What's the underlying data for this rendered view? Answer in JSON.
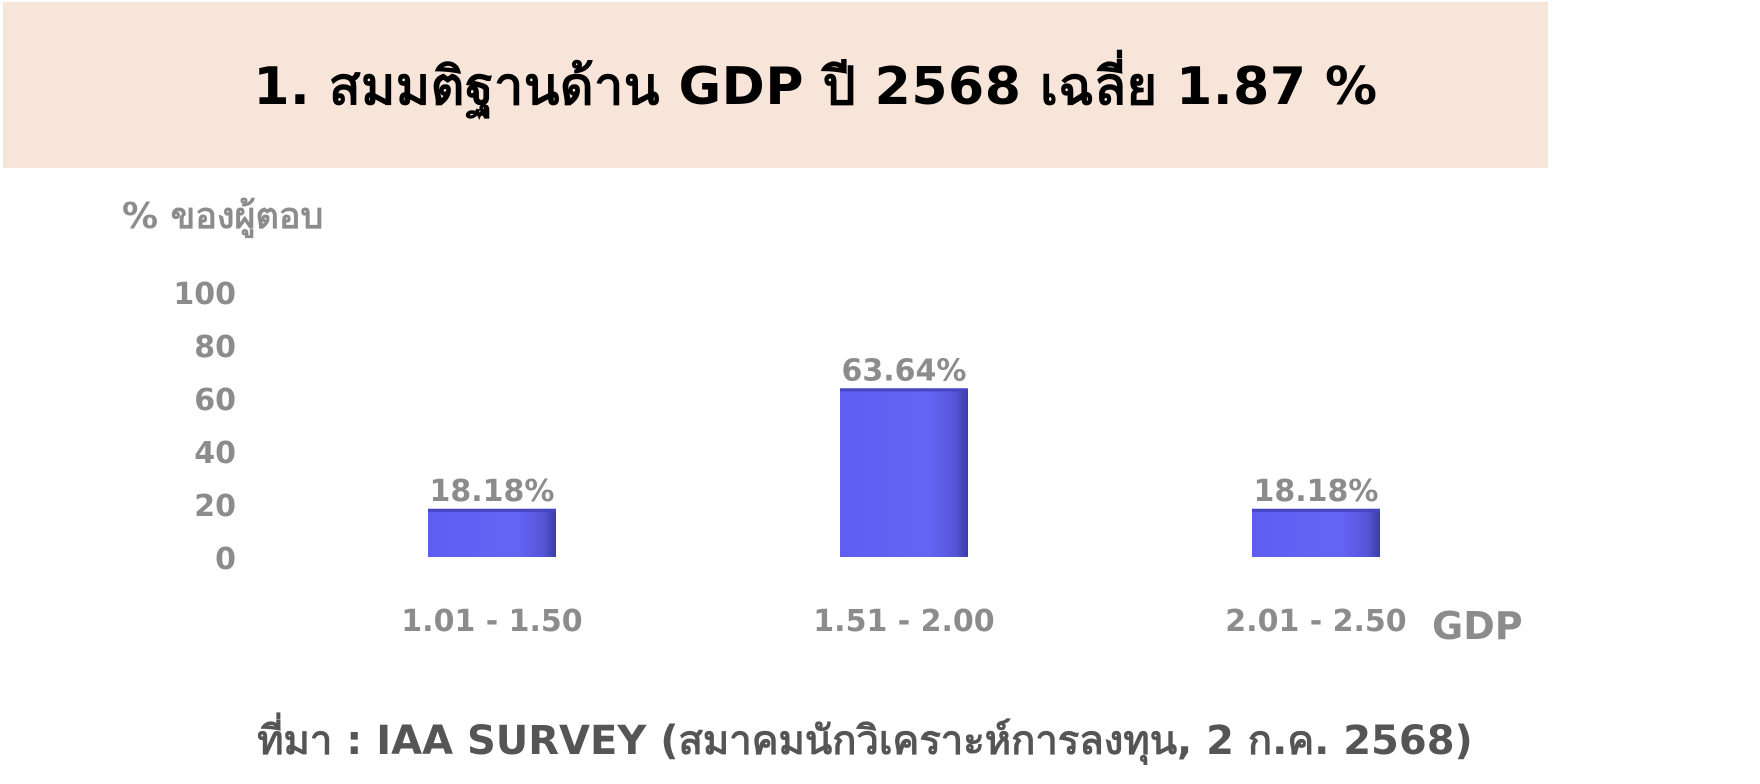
{
  "header": {
    "title": "1. สมมติฐานด้าน GDP ปี 2568 เฉลี่ย 1.87 %",
    "background_color": "#f8e5d9"
  },
  "chart_data": {
    "type": "bar",
    "title": "",
    "ylabel": "% ของผู้ตอบ",
    "xlabel": "GDP",
    "categories": [
      "1.01 - 1.50",
      "1.51 - 2.00",
      "2.01 - 2.50"
    ],
    "values": [
      18.18,
      63.64,
      18.18
    ],
    "data_labels": [
      "18.18%",
      "63.64%",
      "18.18%"
    ],
    "ylim": [
      0,
      100
    ],
    "yticks": [
      0,
      20,
      40,
      60,
      80,
      100
    ],
    "grid": false,
    "legend": "none",
    "bar_color": "#6262f0",
    "text_color": "#8c8c8c"
  },
  "footer": {
    "source": "ที่มา : IAA SURVEY (สมาคมนักวิเคราะห์การลงทุน, 2 ก.ค. 2568)"
  }
}
